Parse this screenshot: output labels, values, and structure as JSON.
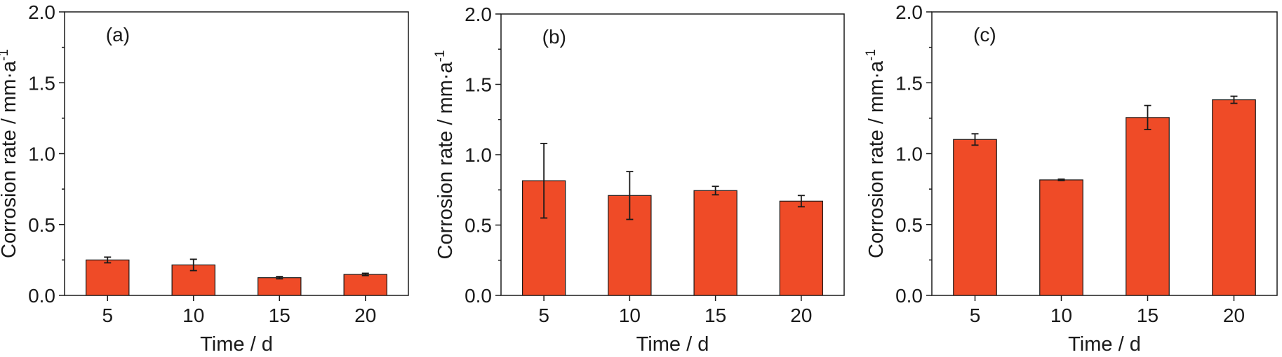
{
  "chart_data": [
    {
      "type": "bar",
      "panel_label": "(a)",
      "categories": [
        "5",
        "10",
        "15",
        "20"
      ],
      "values": [
        0.25,
        0.215,
        0.125,
        0.148
      ],
      "error": [
        0.02,
        0.04,
        0.008,
        0.008
      ],
      "xlabel": "Time / d",
      "ylabel": "Corrosion rate / mm·a",
      "ylabel_superscript": "-1",
      "ylim": [
        0,
        2.0
      ],
      "yticks": [
        "0.0",
        "0.5",
        "1.0",
        "1.5",
        "2.0"
      ],
      "grid": false,
      "bar_color": "#EF4B27"
    },
    {
      "type": "bar",
      "panel_label": "(b)",
      "categories": [
        "5",
        "10",
        "15",
        "20"
      ],
      "values": [
        0.815,
        0.71,
        0.745,
        0.67
      ],
      "error": [
        0.265,
        0.17,
        0.03,
        0.04
      ],
      "xlabel": "Time / d",
      "ylabel": "Corrosion rate / mm·a",
      "ylabel_superscript": "-1",
      "ylim": [
        0,
        2.0
      ],
      "yticks": [
        "0.0",
        "0.5",
        "1.0",
        "1.5",
        "2.0"
      ],
      "grid": false,
      "bar_color": "#EF4B27"
    },
    {
      "type": "bar",
      "panel_label": "(c)",
      "categories": [
        "5",
        "10",
        "15",
        "20"
      ],
      "values": [
        1.1,
        0.815,
        1.255,
        1.38
      ],
      "error": [
        0.04,
        0.005,
        0.085,
        0.025
      ],
      "xlabel": "Time / d",
      "ylabel": "Corrosion rate / mm·a",
      "ylabel_superscript": "-1",
      "ylim": [
        0,
        2.0
      ],
      "yticks": [
        "0.0",
        "0.5",
        "1.0",
        "1.5",
        "2.0"
      ],
      "grid": false,
      "bar_color": "#EF4B27"
    }
  ]
}
